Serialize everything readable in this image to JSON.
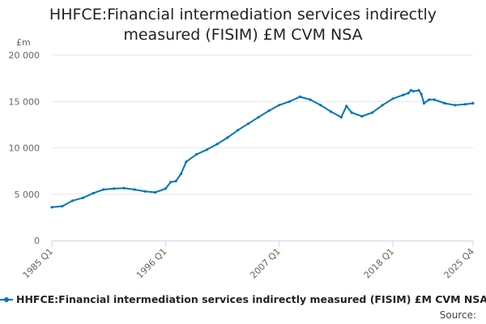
{
  "chart_data": {
    "type": "line",
    "title_lines": [
      "HHFCE:Financial intermediation services indirectly",
      "measured (FISIM) £M CVM NSA"
    ],
    "yunit": "£m",
    "ylim": [
      0,
      20000
    ],
    "yticks": [
      0,
      5000,
      10000,
      15000,
      20000
    ],
    "ytick_labels": [
      "0",
      "5 000",
      "10 000",
      "15 000",
      "20 000"
    ],
    "xlim": [
      1985.0,
      2025.75
    ],
    "xticks": [
      1985.0,
      1996.0,
      2007.0,
      2018.0,
      2025.75
    ],
    "xtick_labels": [
      "1985 Q1",
      "1996 Q1",
      "2007 Q1",
      "2018 Q1",
      "2025 Q4"
    ],
    "grid": "horizontal",
    "legend_position": "bottom",
    "source_label": "Source:",
    "series": [
      {
        "name": "HHFCE:Financial intermediation services indirectly measured (FISIM) £M CVM NSA",
        "color": "#0075b6",
        "points": [
          [
            1985.0,
            3600
          ],
          [
            1986.0,
            3700
          ],
          [
            1987.0,
            4300
          ],
          [
            1988.0,
            4600
          ],
          [
            1989.0,
            5100
          ],
          [
            1990.0,
            5500
          ],
          [
            1991.0,
            5600
          ],
          [
            1992.0,
            5650
          ],
          [
            1993.0,
            5500
          ],
          [
            1994.0,
            5300
          ],
          [
            1995.0,
            5200
          ],
          [
            1996.0,
            5600
          ],
          [
            1996.5,
            6300
          ],
          [
            1997.0,
            6400
          ],
          [
            1997.5,
            7200
          ],
          [
            1998.0,
            8500
          ],
          [
            1999.0,
            9300
          ],
          [
            2000.0,
            9800
          ],
          [
            2001.0,
            10400
          ],
          [
            2002.0,
            11100
          ],
          [
            2003.0,
            11900
          ],
          [
            2004.0,
            12600
          ],
          [
            2005.0,
            13300
          ],
          [
            2006.0,
            14000
          ],
          [
            2007.0,
            14600
          ],
          [
            2008.0,
            15000
          ],
          [
            2009.0,
            15500
          ],
          [
            2010.0,
            15200
          ],
          [
            2011.0,
            14600
          ],
          [
            2012.0,
            13900
          ],
          [
            2013.0,
            13300
          ],
          [
            2013.5,
            14500
          ],
          [
            2014.0,
            13800
          ],
          [
            2015.0,
            13400
          ],
          [
            2016.0,
            13800
          ],
          [
            2017.0,
            14600
          ],
          [
            2018.0,
            15300
          ],
          [
            2019.0,
            15700
          ],
          [
            2019.5,
            15900
          ],
          [
            2019.75,
            16200
          ],
          [
            2020.0,
            16100
          ],
          [
            2020.5,
            16200
          ],
          [
            2020.75,
            15800
          ],
          [
            2021.0,
            14800
          ],
          [
            2021.5,
            15200
          ],
          [
            2022.0,
            15200
          ],
          [
            2023.0,
            14800
          ],
          [
            2024.0,
            14600
          ],
          [
            2025.0,
            14700
          ],
          [
            2025.75,
            14800
          ]
        ]
      }
    ]
  }
}
